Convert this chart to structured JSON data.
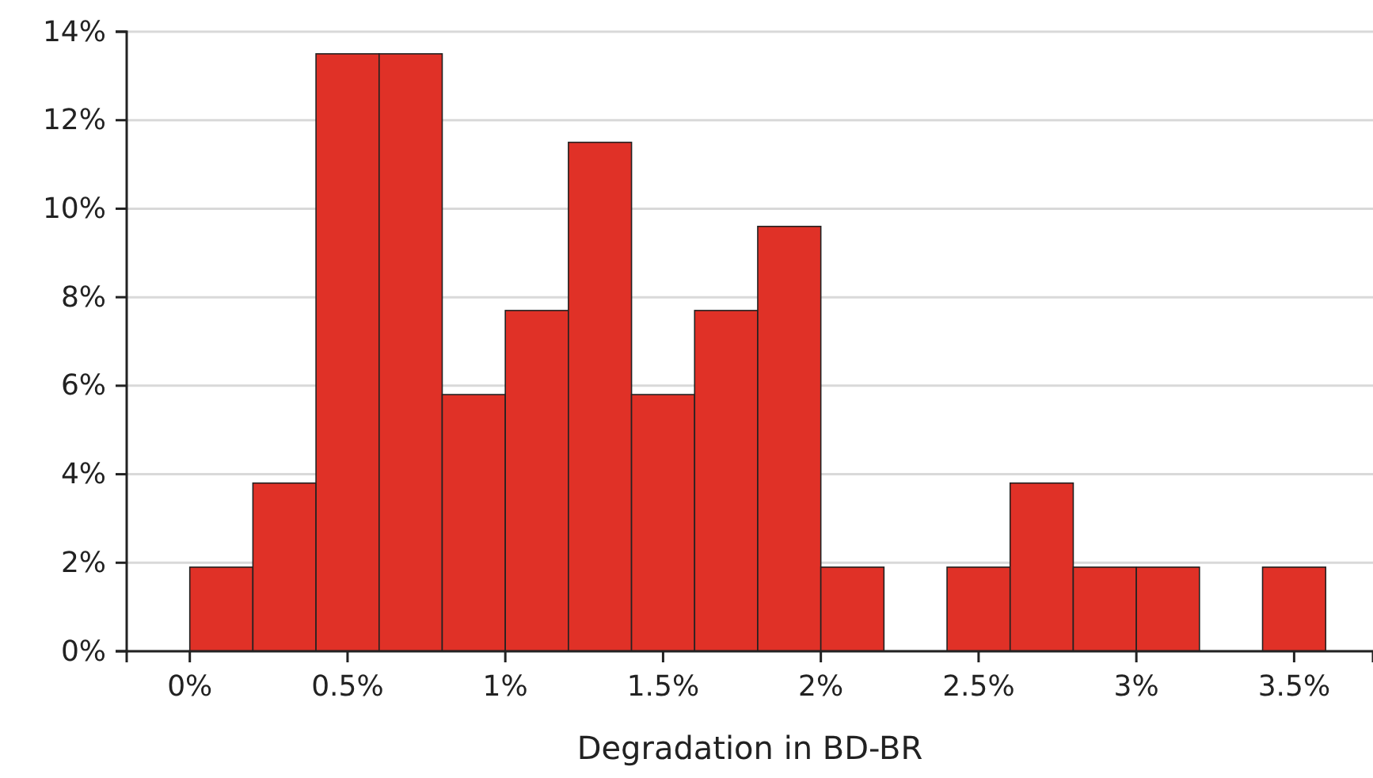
{
  "chart_data": {
    "type": "histogram",
    "xlabel": "Degradation in BD-BR",
    "bins": [
      0,
      0.2,
      0.4,
      0.6,
      0.8,
      1.0,
      1.2,
      1.4,
      1.6,
      1.8,
      2.0,
      2.2,
      2.4,
      2.6,
      2.8,
      3.0,
      3.2,
      3.4,
      3.6
    ],
    "values": [
      1.9,
      3.8,
      13.5,
      13.5,
      5.8,
      7.7,
      11.5,
      5.8,
      7.7,
      9.6,
      1.9,
      0,
      1.9,
      3.8,
      1.9,
      1.9,
      0,
      1.9
    ],
    "color": "#e03127",
    "xlim": [
      -0.2,
      3.75
    ],
    "xticks": [
      {
        "value": 0,
        "label": "0%"
      },
      {
        "value": 0.5,
        "label": "0.5%"
      },
      {
        "value": 1,
        "label": "1%"
      },
      {
        "value": 1.5,
        "label": "1.5%"
      },
      {
        "value": 2,
        "label": "2%"
      },
      {
        "value": 2.5,
        "label": "2.5%"
      },
      {
        "value": 3,
        "label": "3%"
      },
      {
        "value": 3.5,
        "label": "3.5%"
      }
    ],
    "ylim": [
      0,
      14
    ],
    "yticks": [
      {
        "value": 0,
        "label": "0%"
      },
      {
        "value": 2,
        "label": "2%"
      },
      {
        "value": 4,
        "label": "4%"
      },
      {
        "value": 6,
        "label": "6%"
      },
      {
        "value": 8,
        "label": "8%"
      },
      {
        "value": 10,
        "label": "10%"
      },
      {
        "value": 12,
        "label": "12%"
      },
      {
        "value": 14,
        "label": "14%"
      }
    ],
    "grid": "y"
  }
}
